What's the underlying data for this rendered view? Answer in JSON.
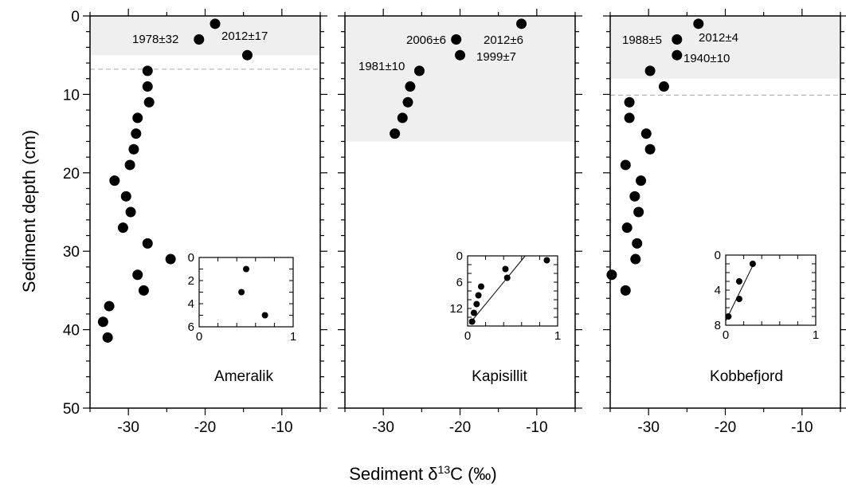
{
  "figure": {
    "ylabel": "Sediment depth (cm)",
    "xlabel": "Sediment δ¹³C (‰)",
    "xlabel_main": "Sediment δ",
    "xlabel_sup": "13",
    "xlabel_tail": "C  (‰)"
  },
  "chart_data": [
    {
      "type": "scatter",
      "site": "Ameralik",
      "xlim": [
        -35,
        -5
      ],
      "ylim": [
        50,
        0
      ],
      "x_ticks": [
        -30,
        -20,
        -10
      ],
      "y_ticks": [
        0,
        10,
        20,
        30,
        40,
        50
      ],
      "y_inverted": true,
      "points": [
        {
          "x": -18.7,
          "y": 1
        },
        {
          "x": -20.8,
          "y": 3
        },
        {
          "x": -14.5,
          "y": 5
        },
        {
          "x": -27.5,
          "y": 7
        },
        {
          "x": -27.5,
          "y": 9
        },
        {
          "x": -27.3,
          "y": 11
        },
        {
          "x": -28.8,
          "y": 13
        },
        {
          "x": -29.0,
          "y": 15
        },
        {
          "x": -29.3,
          "y": 17
        },
        {
          "x": -29.8,
          "y": 19
        },
        {
          "x": -31.8,
          "y": 21
        },
        {
          "x": -30.3,
          "y": 23
        },
        {
          "x": -29.7,
          "y": 25
        },
        {
          "x": -30.7,
          "y": 27
        },
        {
          "x": -27.5,
          "y": 29
        },
        {
          "x": -24.5,
          "y": 31
        },
        {
          "x": -28.8,
          "y": 33
        },
        {
          "x": -28.0,
          "y": 35
        },
        {
          "x": -32.5,
          "y": 37
        },
        {
          "x": -33.3,
          "y": 39
        },
        {
          "x": -32.7,
          "y": 41
        }
      ],
      "shaded_depth_to": 5,
      "dashed_line_depth": 6.8,
      "annotations": [
        "1978±32",
        "2012±17"
      ],
      "inset": {
        "xlim": [
          0,
          1
        ],
        "ylim": [
          6,
          0
        ],
        "x_ticks": [
          0,
          1
        ],
        "y_ticks": [
          0,
          2,
          4,
          6
        ],
        "points": [
          {
            "x": 0.5,
            "y": 1
          },
          {
            "x": 0.45,
            "y": 3
          },
          {
            "x": 0.7,
            "y": 5
          }
        ],
        "fit_line": false
      }
    },
    {
      "type": "scatter",
      "site": "Kapisillit",
      "xlim": [
        -35,
        -5
      ],
      "ylim": [
        50,
        0
      ],
      "x_ticks": [
        -30,
        -20,
        -10
      ],
      "y_ticks": [
        0,
        10,
        20,
        30,
        40,
        50
      ],
      "y_inverted": true,
      "points": [
        {
          "x": -12.0,
          "y": 1
        },
        {
          "x": -20.5,
          "y": 3
        },
        {
          "x": -20.0,
          "y": 5
        },
        {
          "x": -25.3,
          "y": 7
        },
        {
          "x": -26.5,
          "y": 9
        },
        {
          "x": -26.8,
          "y": 11
        },
        {
          "x": -27.5,
          "y": 13
        },
        {
          "x": -28.5,
          "y": 15
        }
      ],
      "shaded_depth_to": 16,
      "annotations": [
        "2006±6",
        "2012±6",
        "1999±7",
        "1981±10"
      ],
      "inset": {
        "xlim": [
          0,
          1
        ],
        "ylim": [
          16,
          0
        ],
        "x_ticks": [
          0,
          1
        ],
        "y_ticks": [
          0,
          6,
          12
        ],
        "points": [
          {
            "x": 0.88,
            "y": 1
          },
          {
            "x": 0.42,
            "y": 3
          },
          {
            "x": 0.44,
            "y": 5
          },
          {
            "x": 0.15,
            "y": 7
          },
          {
            "x": 0.12,
            "y": 9
          },
          {
            "x": 0.1,
            "y": 11
          },
          {
            "x": 0.07,
            "y": 13
          },
          {
            "x": 0.05,
            "y": 15
          }
        ],
        "fit_line": true,
        "fit_from": {
          "x": 0.02,
          "y": 15.5
        },
        "fit_to": {
          "x": 0.64,
          "y": 0
        }
      }
    },
    {
      "type": "scatter",
      "site": "Kobbefjord",
      "xlim": [
        -35,
        -5
      ],
      "ylim": [
        50,
        0
      ],
      "x_ticks": [
        -30,
        -20,
        -10
      ],
      "y_ticks": [
        0,
        10,
        20,
        30,
        40,
        50
      ],
      "y_inverted": true,
      "points": [
        {
          "x": -23.5,
          "y": 1
        },
        {
          "x": -26.3,
          "y": 3
        },
        {
          "x": -26.3,
          "y": 5
        },
        {
          "x": -29.8,
          "y": 7
        },
        {
          "x": -28.0,
          "y": 9
        },
        {
          "x": -32.5,
          "y": 11
        },
        {
          "x": -32.5,
          "y": 13
        },
        {
          "x": -30.3,
          "y": 15
        },
        {
          "x": -29.8,
          "y": 17
        },
        {
          "x": -33.0,
          "y": 19
        },
        {
          "x": -31.0,
          "y": 21
        },
        {
          "x": -31.8,
          "y": 23
        },
        {
          "x": -31.3,
          "y": 25
        },
        {
          "x": -32.8,
          "y": 27
        },
        {
          "x": -31.5,
          "y": 29
        },
        {
          "x": -31.7,
          "y": 31
        },
        {
          "x": -34.8,
          "y": 33
        },
        {
          "x": -33.0,
          "y": 35
        }
      ],
      "shaded_depth_to": 8,
      "dashed_line_depth": 10.1,
      "annotations": [
        "1988±5",
        "2012±4",
        "1940±10"
      ],
      "inset": {
        "xlim": [
          0,
          1
        ],
        "ylim": [
          8,
          0
        ],
        "x_ticks": [
          0,
          1
        ],
        "y_ticks": [
          0,
          4,
          8
        ],
        "points": [
          {
            "x": 0.3,
            "y": 1
          },
          {
            "x": 0.15,
            "y": 3
          },
          {
            "x": 0.15,
            "y": 5
          },
          {
            "x": 0.03,
            "y": 7
          }
        ],
        "fit_line": true,
        "fit_from": {
          "x": 0.0,
          "y": 7.5
        },
        "fit_to": {
          "x": 0.32,
          "y": 0.8
        }
      }
    }
  ]
}
